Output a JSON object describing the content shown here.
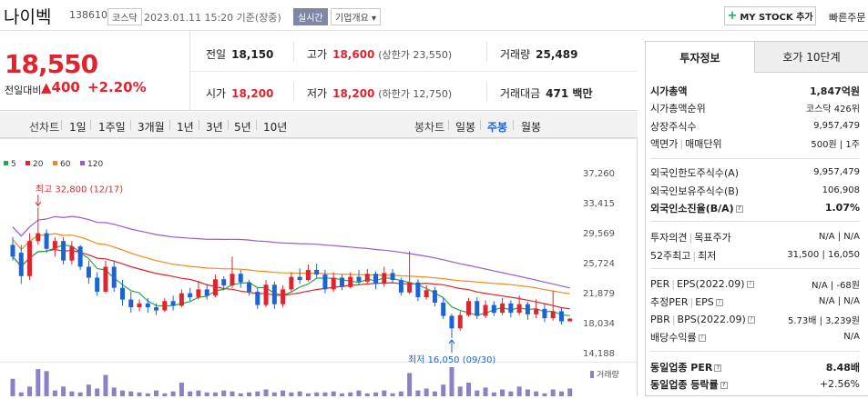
{
  "header": {
    "stock_name": "나이벡",
    "stock_code": "138610",
    "market": "코스닥",
    "date": "2023.01.11 15:20 기준(장중)",
    "realtime": "실시간",
    "company_overview": "기업개요 ▾",
    "mystock_label": "MY STOCK 추가",
    "quick_order": "빠른주문"
  },
  "price": {
    "current": "18,550",
    "change_label": "전일대비",
    "change_amount": "▲400",
    "change_pct": "+2.20%"
  },
  "stats": {
    "prev_close_label": "전일",
    "prev_close": "18,150",
    "high_label": "고가",
    "high": "18,600",
    "upper_limit": "(상한가 23,550)",
    "volume_label": "거래량",
    "volume": "25,489",
    "open_label": "시가",
    "open": "18,200",
    "low_label": "저가",
    "low": "18,200",
    "lower_limit": "(하한가 12,750)",
    "trade_value_label": "거래대금",
    "trade_value": "471 백만"
  },
  "toolbar": {
    "line_chart": "선차트",
    "periods": [
      "1일",
      "1주일",
      "3개월",
      "1년",
      "3년",
      "5년",
      "10년"
    ],
    "candle_chart": "봉차트",
    "candles": [
      "일봉",
      "주봉",
      "월봉"
    ],
    "active_candle": "주봉"
  },
  "chart_data": {
    "type": "candlestick",
    "legend": [
      {
        "name": "5",
        "color": "#2aa745"
      },
      {
        "name": "20",
        "color": "#e0242e"
      },
      {
        "name": "60",
        "color": "#f08a1e"
      },
      {
        "name": "120",
        "color": "#9a5ad0"
      }
    ],
    "y_ticks": [
      37260,
      33415,
      29569,
      25724,
      21879,
      18034,
      14188
    ],
    "y_tick_labels": [
      "37,260",
      "33,415",
      "29,569",
      "25,724",
      "21,879",
      "18,034",
      "14,188"
    ],
    "ylim": [
      14188,
      37260
    ],
    "high_annotation": "최고 32,800 (12/17)",
    "low_annotation": "최저 16,050 (09/30)",
    "volume_label": "거래량",
    "candles": [
      [
        28000,
        26500,
        29000,
        26000
      ],
      [
        27000,
        24000,
        28000,
        23000
      ],
      [
        24000,
        28500,
        29500,
        23500
      ],
      [
        28500,
        29500,
        32800,
        28000
      ],
      [
        29500,
        27500,
        30000,
        27000
      ],
      [
        27500,
        28500,
        29000,
        26500
      ],
      [
        28500,
        26000,
        29000,
        25500
      ],
      [
        26000,
        27800,
        28500,
        25500
      ],
      [
        27800,
        25200,
        28000,
        24800
      ],
      [
        25200,
        23800,
        26000,
        23000
      ],
      [
        23800,
        22000,
        24500,
        21500
      ],
      [
        22000,
        25200,
        26000,
        21800
      ],
      [
        25200,
        22500,
        26000,
        22000
      ],
      [
        22500,
        21000,
        23500,
        20200
      ],
      [
        21000,
        20000,
        22000,
        19300
      ],
      [
        20000,
        20500,
        21000,
        19500
      ],
      [
        20500,
        20000,
        21200,
        19300
      ],
      [
        20000,
        19600,
        20500,
        19000
      ],
      [
        19600,
        20800,
        21200,
        19400
      ],
      [
        20800,
        20200,
        21500,
        19600
      ],
      [
        20200,
        21800,
        22300,
        20000
      ],
      [
        21800,
        21300,
        22500,
        20800
      ],
      [
        21300,
        22300,
        23400,
        21000
      ],
      [
        22300,
        21500,
        23000,
        21000
      ],
      [
        21500,
        23600,
        24200,
        21300
      ],
      [
        23600,
        22800,
        24000,
        22200
      ],
      [
        22800,
        24300,
        26500,
        22500
      ],
      [
        24300,
        23200,
        24800,
        22500
      ],
      [
        23200,
        22000,
        23500,
        21500
      ],
      [
        22000,
        20300,
        22500,
        19800
      ],
      [
        20300,
        22900,
        23500,
        20000
      ],
      [
        22900,
        20400,
        23300,
        19800
      ],
      [
        20400,
        22300,
        22800,
        20000
      ],
      [
        22300,
        23900,
        24500,
        22000
      ],
      [
        23900,
        23500,
        25000,
        23000
      ],
      [
        23500,
        24800,
        25500,
        23300
      ],
      [
        24800,
        24200,
        25600,
        23800
      ],
      [
        24200,
        22300,
        24800,
        21800
      ],
      [
        22300,
        23800,
        24500,
        22000
      ],
      [
        23800,
        22600,
        24200,
        22200
      ],
      [
        22600,
        23900,
        24500,
        22400
      ],
      [
        23900,
        23300,
        24800,
        22900
      ],
      [
        23300,
        24300,
        24900,
        23100
      ],
      [
        24300,
        23000,
        24600,
        22300
      ],
      [
        23000,
        24400,
        25200,
        22600
      ],
      [
        24400,
        23500,
        24900,
        23100
      ],
      [
        23500,
        21900,
        23800,
        21500
      ],
      [
        21900,
        23200,
        27200,
        21700
      ],
      [
        23200,
        21300,
        23600,
        20800
      ],
      [
        21300,
        22200,
        22800,
        21000
      ],
      [
        22200,
        20600,
        22600,
        20100
      ],
      [
        20600,
        18900,
        21200,
        18500
      ],
      [
        18900,
        17300,
        19200,
        16050
      ],
      [
        17300,
        19000,
        19500,
        17000
      ],
      [
        19000,
        20800,
        21200,
        18800
      ],
      [
        20800,
        18900,
        21300,
        18500
      ],
      [
        18900,
        20300,
        20900,
        18600
      ],
      [
        20300,
        19300,
        20800,
        18900
      ],
      [
        19300,
        20500,
        21200,
        19000
      ],
      [
        20500,
        19300,
        20900,
        18700
      ],
      [
        19300,
        20400,
        21500,
        19000
      ],
      [
        20400,
        19100,
        20700,
        18400
      ],
      [
        19100,
        19800,
        21000,
        18600
      ],
      [
        19800,
        18600,
        20400,
        18100
      ],
      [
        18600,
        19500,
        22100,
        18300
      ],
      [
        19500,
        18200,
        19900,
        17800
      ],
      [
        18200,
        18550,
        18600,
        18200
      ]
    ],
    "volumes": [
      18,
      4,
      10,
      28,
      26,
      6,
      10,
      5,
      4,
      12,
      8,
      22,
      9,
      6,
      5,
      4,
      3,
      6,
      3,
      5,
      14,
      5,
      6,
      4,
      4,
      6,
      5,
      3,
      4,
      5,
      7,
      4,
      6,
      4,
      5,
      3,
      4,
      4,
      5,
      3,
      4,
      6,
      3,
      4,
      6,
      3,
      5,
      24,
      6,
      8,
      5,
      12,
      30,
      10,
      14,
      6,
      9,
      4,
      7,
      5,
      10,
      7,
      5,
      3,
      7,
      5,
      8
    ]
  },
  "right_panel": {
    "tabs": [
      "투자정보",
      "호가 10단계"
    ],
    "market_cap_label": "시가총액",
    "market_cap": "1,847억원",
    "market_cap_rank_label": "시가총액순위",
    "market_cap_rank": "코스닥 426위",
    "shares_label": "상장주식수",
    "shares": "9,957,479",
    "par_label": "액면가",
    "unit_label": "매매단위",
    "par_unit": "500원 | 1주",
    "foreign_limit_label": "외국인한도주식수(A)",
    "foreign_limit": "9,957,479",
    "foreign_hold_label": "외국인보유주식수(B)",
    "foreign_hold": "106,908",
    "foreign_ratio_label": "외국인소진율(B/A)",
    "foreign_ratio": "1.07%",
    "opinion_label": "투자의견",
    "target_label": "목표주가",
    "opinion_target": "N/A | N/A",
    "week52_hi_label": "52주최고",
    "week52_lo_label": "최저",
    "week52": "31,500 | 16,050",
    "per_label": "PER",
    "eps_label": "EPS(2022.09)",
    "per_eps": "N/A | -68원",
    "est_per_label": "추정PER",
    "est_eps_label": "EPS",
    "est_per_eps": "N/A | N/A",
    "pbr_label": "PBR",
    "bps_label": "BPS(2022.09)",
    "pbr_bps": "5.73배 | 3,239원",
    "div_label": "배당수익률",
    "div": "N/A",
    "sector_per_label": "동일업종 PER",
    "sector_per": "8.48배",
    "sector_chg_label": "동일업종 등락률",
    "sector_chg": "+2.56%"
  }
}
